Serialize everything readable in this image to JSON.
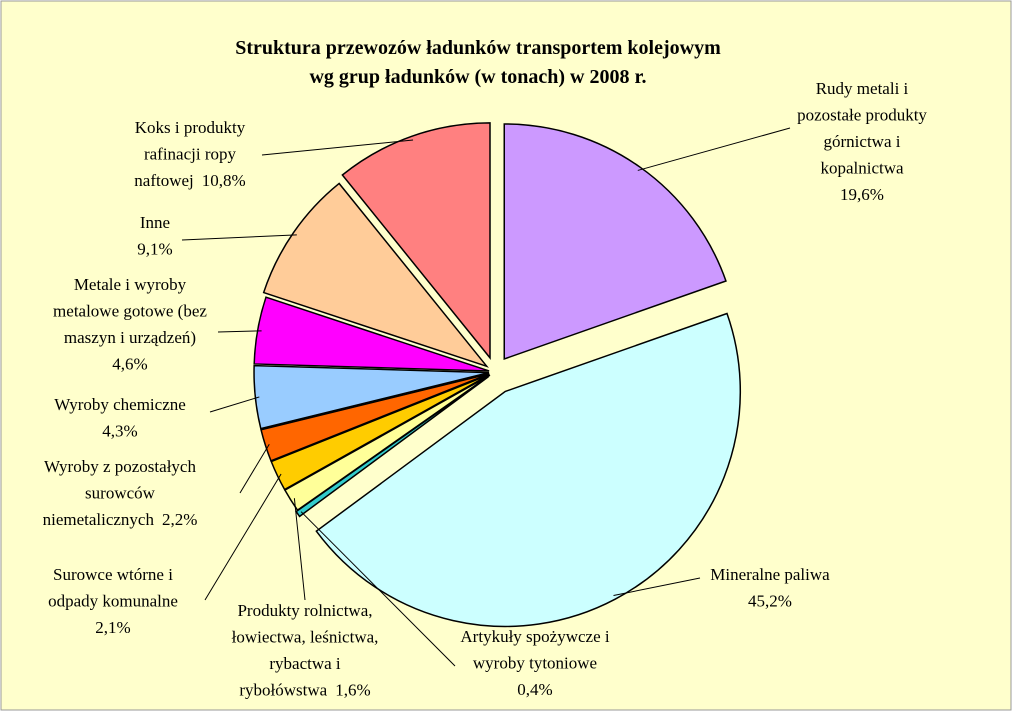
{
  "chart_data": {
    "type": "pie",
    "title": [
      "Struktura przewozów ładunków transportem kolejowym",
      "wg grup ładunków (w tonach) w 2008 r."
    ],
    "categories": [
      [
        "Rudy metali i",
        "pozostałe produkty",
        "górnictwa i",
        "kopalnictwa"
      ],
      [
        "Mineralne paliwa"
      ],
      [
        "Artykuły spożywcze i",
        "wyroby tytoniowe"
      ],
      [
        "Produkty rolnictwa,",
        "łowiectwa, leśnictwa,",
        "rybactwa i",
        "rybołówstwa"
      ],
      [
        "Surowce wtórne i",
        "odpady komunalne"
      ],
      [
        "Wyroby z pozostałych",
        "surowców",
        "niemetalicznych"
      ],
      [
        "Wyroby chemiczne"
      ],
      [
        "Metale i wyroby",
        "metalowe gotowe (bez",
        "maszyn i urządzeń)"
      ],
      [
        "Inne"
      ],
      [
        "Koks i produkty",
        "rafinacji ropy",
        "naftowej"
      ]
    ],
    "values": [
      19.6,
      45.2,
      0.4,
      1.6,
      2.1,
      2.2,
      4.3,
      4.6,
      9.1,
      10.8
    ],
    "value_labels": [
      "19,6%",
      "45,2%",
      "0,4%",
      "1,6%",
      "2,1%",
      "2,2%",
      "4,3%",
      "4,6%",
      "9,1%",
      "10,8%"
    ],
    "colors": [
      "#cc99ff",
      "#ccffff",
      "#33cccc",
      "#ffff99",
      "#ffcc00",
      "#ff6600",
      "#99ccff",
      "#ff00ff",
      "#ffcc99",
      "#ff8080"
    ]
  }
}
